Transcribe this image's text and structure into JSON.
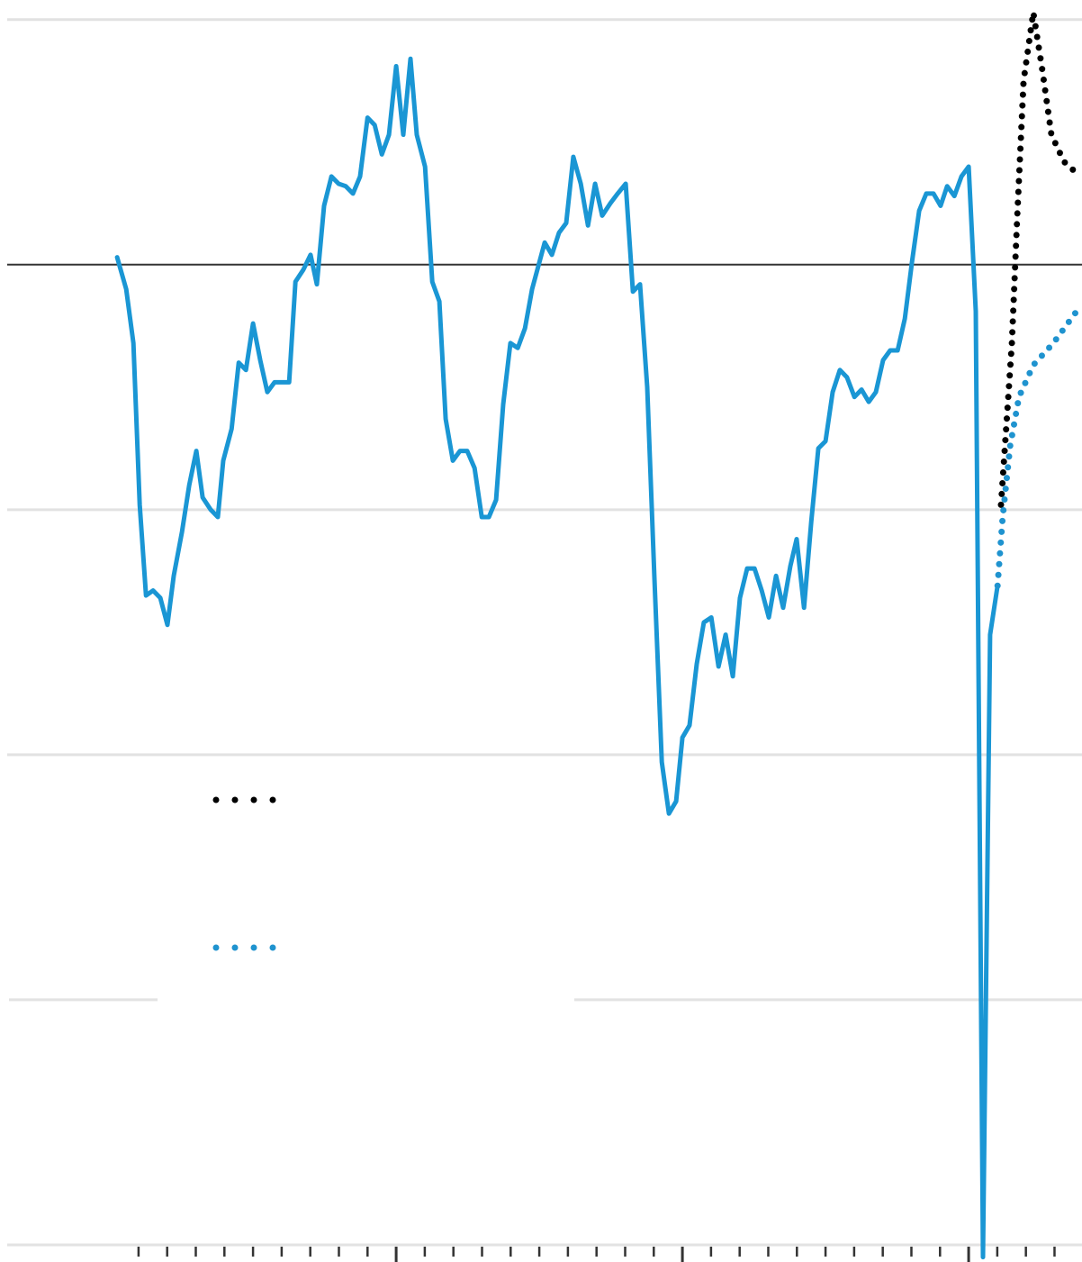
{
  "chart_data": {
    "type": "line",
    "xlim": [
      1986.16,
      2023.96
    ],
    "ylim": [
      -4.07,
      1.08
    ],
    "yticks": [
      1,
      0,
      -1,
      -2,
      -3,
      -4
    ],
    "xticks": [
      1991,
      1992,
      1993,
      1994,
      1995,
      1996,
      1997,
      1998,
      1999,
      2000,
      2001,
      2002,
      2003,
      2004,
      2005,
      2006,
      2007,
      2008,
      2009,
      2010,
      2011,
      2012,
      2013,
      2014,
      2015,
      2016,
      2017,
      2018,
      2019,
      2020,
      2021,
      2022,
      2023
    ],
    "grid": true,
    "series": [
      {
        "color": "#1a96d4",
        "style": "solid",
        "x": [
          1990.25,
          1990.57,
          1990.82,
          1991.04,
          1991.26,
          1991.51,
          1991.76,
          1992.01,
          1992.23,
          1992.52,
          1992.77,
          1993.02,
          1993.24,
          1993.52,
          1993.77,
          1993.96,
          1994.25,
          1994.5,
          1994.75,
          1995.0,
          1995.25,
          1995.5,
          1995.75,
          1996.01,
          1996.26,
          1996.48,
          1996.76,
          1997.01,
          1997.23,
          1997.48,
          1997.74,
          1997.99,
          1998.24,
          1998.49,
          1998.74,
          1999.0,
          1999.25,
          1999.5,
          1999.75,
          2000.0,
          2000.25,
          2000.5,
          2000.72,
          2001.01,
          2001.26,
          2001.51,
          2001.73,
          2001.98,
          2002.23,
          2002.48,
          2002.74,
          2002.99,
          2003.24,
          2003.49,
          2003.74,
          2003.99,
          2004.25,
          2004.5,
          2004.75,
          2005.19,
          2005.44,
          2005.69,
          2005.94,
          2006.19,
          2006.45,
          2006.7,
          2006.95,
          2007.2,
          2007.48,
          2007.74,
          2008.02,
          2008.27,
          2008.52,
          2008.77,
          2009.02,
          2009.28,
          2009.53,
          2009.78,
          2010.0,
          2010.25,
          2010.5,
          2010.75,
          2011.01,
          2011.26,
          2011.51,
          2011.76,
          2012.01,
          2012.26,
          2012.52,
          2012.77,
          2013.02,
          2013.27,
          2013.52,
          2013.77,
          2013.99,
          2014.25,
          2014.5,
          2014.75,
          2015.0,
          2015.25,
          2015.5,
          2015.75,
          2016.01,
          2016.26,
          2016.51,
          2016.76,
          2017.01,
          2017.26,
          2017.52,
          2017.77,
          2018.02,
          2018.27,
          2018.52,
          2018.77,
          2019.02,
          2019.25,
          2019.5,
          2019.75,
          2020.0,
          2020.25,
          2020.5,
          2020.75,
          2021.01
        ],
        "values": [
          0.03,
          -0.1,
          -0.32,
          -0.98,
          -1.35,
          -1.33,
          -1.36,
          -1.47,
          -1.27,
          -1.09,
          -0.9,
          -0.76,
          -0.95,
          -1.0,
          -1.03,
          -0.8,
          -0.67,
          -0.4,
          -0.43,
          -0.24,
          -0.39,
          -0.52,
          -0.48,
          -0.48,
          -0.48,
          -0.07,
          -0.02,
          0.04,
          -0.08,
          0.24,
          0.36,
          0.33,
          0.32,
          0.29,
          0.36,
          0.6,
          0.57,
          0.45,
          0.53,
          0.81,
          0.53,
          0.84,
          0.53,
          0.4,
          -0.07,
          -0.15,
          -0.63,
          -0.8,
          -0.76,
          -0.76,
          -0.83,
          -1.03,
          -1.03,
          -0.96,
          -0.57,
          -0.32,
          -0.34,
          -0.26,
          -0.1,
          0.09,
          0.04,
          0.13,
          0.17,
          0.44,
          0.33,
          0.16,
          0.33,
          0.2,
          0.25,
          0.29,
          0.33,
          -0.11,
          -0.08,
          -0.5,
          -1.27,
          -2.03,
          -2.24,
          -2.19,
          -1.93,
          -1.88,
          -1.63,
          -1.46,
          -1.44,
          -1.64,
          -1.51,
          -1.68,
          -1.36,
          -1.24,
          -1.24,
          -1.33,
          -1.44,
          -1.27,
          -1.4,
          -1.23,
          -1.12,
          -1.4,
          -1.05,
          -0.75,
          -0.72,
          -0.52,
          -0.43,
          -0.46,
          -0.54,
          -0.51,
          -0.56,
          -0.52,
          -0.39,
          -0.35,
          -0.35,
          -0.22,
          0.01,
          0.22,
          0.29,
          0.29,
          0.24,
          0.32,
          0.28,
          0.36,
          0.4,
          -0.19,
          -4.05,
          -1.51,
          -1.31
        ]
      },
      {
        "color": "#000000",
        "style": "dotted",
        "x": [
          2021.13,
          2021.32,
          2021.51,
          2021.7,
          2021.92,
          2022.26,
          2022.58,
          2022.89,
          2023.33,
          2023.9
        ],
        "values": [
          -0.98,
          -0.65,
          -0.32,
          0.2,
          0.75,
          1.03,
          0.79,
          0.53,
          0.42,
          0.36
        ]
      },
      {
        "color": "#1f93cf",
        "style": "dotted",
        "x": [
          2021.01,
          2021.19,
          2021.45,
          2021.76,
          2022.26,
          2022.96,
          2023.9
        ],
        "values": [
          -1.31,
          -1.03,
          -0.74,
          -0.54,
          -0.41,
          -0.32,
          -0.17
        ]
      }
    ]
  }
}
